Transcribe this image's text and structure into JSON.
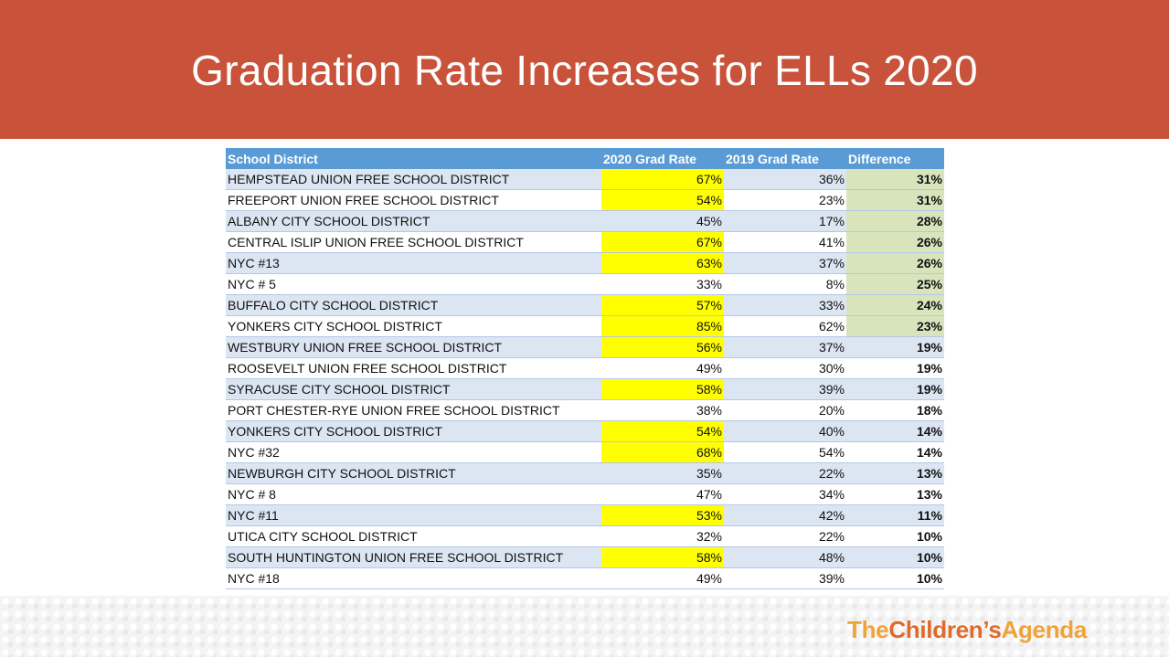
{
  "title": "Graduation Rate Increases for ELLs 2020",
  "colors": {
    "banner": "#c9523a",
    "header": "#5b9bd5",
    "row_band": "#dce6f2",
    "highlight_yellow": "#ffff00",
    "highlight_green": "#d8e4bc"
  },
  "table": {
    "headers": [
      "School District",
      "2020 Grad Rate",
      "2019 Grad Rate",
      "Difference"
    ],
    "rows": [
      {
        "district": "HEMPSTEAD UNION FREE SCHOOL DISTRICT",
        "rate_2020": "67%",
        "rate_2019": "36%",
        "difference": "31%",
        "highlight_2020": true,
        "highlight_diff": true
      },
      {
        "district": "FREEPORT UNION FREE SCHOOL DISTRICT",
        "rate_2020": "54%",
        "rate_2019": "23%",
        "difference": "31%",
        "highlight_2020": true,
        "highlight_diff": true
      },
      {
        "district": "ALBANY CITY SCHOOL DISTRICT",
        "rate_2020": "45%",
        "rate_2019": "17%",
        "difference": "28%",
        "highlight_2020": false,
        "highlight_diff": true
      },
      {
        "district": "CENTRAL ISLIP UNION FREE SCHOOL DISTRICT",
        "rate_2020": "67%",
        "rate_2019": "41%",
        "difference": "26%",
        "highlight_2020": true,
        "highlight_diff": true
      },
      {
        "district": "NYC #13",
        "rate_2020": "63%",
        "rate_2019": "37%",
        "difference": "26%",
        "highlight_2020": true,
        "highlight_diff": true
      },
      {
        "district": "NYC # 5",
        "rate_2020": "33%",
        "rate_2019": "8%",
        "difference": "25%",
        "highlight_2020": false,
        "highlight_diff": true
      },
      {
        "district": "BUFFALO CITY SCHOOL DISTRICT",
        "rate_2020": "57%",
        "rate_2019": "33%",
        "difference": "24%",
        "highlight_2020": true,
        "highlight_diff": true
      },
      {
        "district": "YONKERS CITY SCHOOL DISTRICT",
        "rate_2020": "85%",
        "rate_2019": "62%",
        "difference": "23%",
        "highlight_2020": true,
        "highlight_diff": true
      },
      {
        "district": "WESTBURY UNION FREE SCHOOL DISTRICT",
        "rate_2020": "56%",
        "rate_2019": "37%",
        "difference": "19%",
        "highlight_2020": true,
        "highlight_diff": false
      },
      {
        "district": "ROOSEVELT UNION FREE SCHOOL DISTRICT",
        "rate_2020": "49%",
        "rate_2019": "30%",
        "difference": "19%",
        "highlight_2020": false,
        "highlight_diff": false
      },
      {
        "district": "SYRACUSE CITY SCHOOL DISTRICT",
        "rate_2020": "58%",
        "rate_2019": "39%",
        "difference": "19%",
        "highlight_2020": true,
        "highlight_diff": false
      },
      {
        "district": "PORT CHESTER-RYE UNION FREE SCHOOL DISTRICT",
        "rate_2020": "38%",
        "rate_2019": "20%",
        "difference": "18%",
        "highlight_2020": false,
        "highlight_diff": false
      },
      {
        "district": "YONKERS CITY SCHOOL DISTRICT",
        "rate_2020": "54%",
        "rate_2019": "40%",
        "difference": "14%",
        "highlight_2020": true,
        "highlight_diff": false
      },
      {
        "district": "NYC #32",
        "rate_2020": "68%",
        "rate_2019": "54%",
        "difference": "14%",
        "highlight_2020": true,
        "highlight_diff": false
      },
      {
        "district": "NEWBURGH CITY SCHOOL DISTRICT",
        "rate_2020": "35%",
        "rate_2019": "22%",
        "difference": "13%",
        "highlight_2020": false,
        "highlight_diff": false
      },
      {
        "district": "NYC # 8",
        "rate_2020": "47%",
        "rate_2019": "34%",
        "difference": "13%",
        "highlight_2020": false,
        "highlight_diff": false
      },
      {
        "district": "NYC #11",
        "rate_2020": "53%",
        "rate_2019": "42%",
        "difference": "11%",
        "highlight_2020": true,
        "highlight_diff": false
      },
      {
        "district": "UTICA CITY SCHOOL DISTRICT",
        "rate_2020": "32%",
        "rate_2019": "22%",
        "difference": "10%",
        "highlight_2020": false,
        "highlight_diff": false
      },
      {
        "district": "SOUTH HUNTINGTON UNION FREE SCHOOL DISTRICT",
        "rate_2020": "58%",
        "rate_2019": "48%",
        "difference": "10%",
        "highlight_2020": true,
        "highlight_diff": false
      },
      {
        "district": "NYC #18",
        "rate_2020": "49%",
        "rate_2019": "39%",
        "difference": "10%",
        "highlight_2020": false,
        "highlight_diff": false
      }
    ]
  },
  "logo": {
    "part1": "The",
    "part2": "Children’s",
    "part3": "Agenda"
  }
}
